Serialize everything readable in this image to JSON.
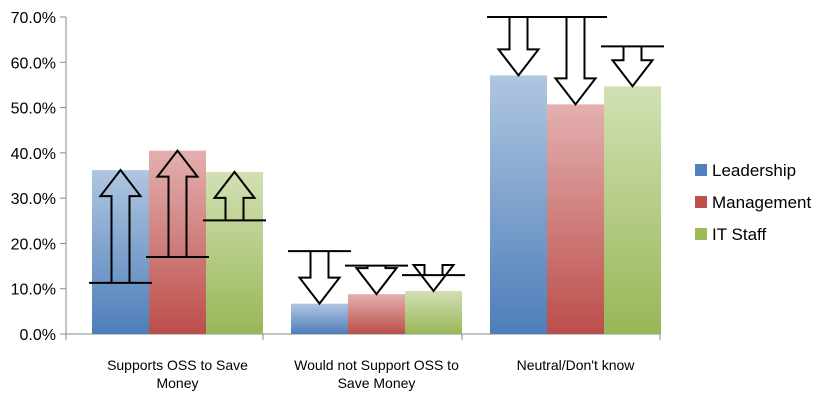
{
  "chart_data": {
    "type": "bar",
    "categories": [
      [
        "Supports OSS to Save",
        "Money"
      ],
      [
        "Would not Support OSS to",
        "Save Money"
      ],
      [
        "Neutral/Don't know"
      ]
    ],
    "series": [
      {
        "name": "Leadership",
        "values": [
          36.2,
          6.7,
          57.1
        ],
        "color": "#4f81bd"
      },
      {
        "name": "Management",
        "values": [
          40.5,
          8.8,
          50.7
        ],
        "color": "#c0504d"
      },
      {
        "name": "IT Staff",
        "values": [
          35.8,
          9.5,
          54.7
        ],
        "color": "#9bbb59"
      }
    ],
    "yticks": [
      "0.0%",
      "10.0%",
      "20.0%",
      "30.0%",
      "40.0%",
      "50.0%",
      "60.0%",
      "70.0%"
    ],
    "ylim": [
      0,
      70
    ],
    "legend_position": "right",
    "annotations": {
      "type": "arrows",
      "description_values": [
        {
          "category": 0,
          "series": 0,
          "from": 11.3,
          "to": 36.2
        },
        {
          "category": 0,
          "series": 1,
          "from": 17.0,
          "to": 40.5
        },
        {
          "category": 0,
          "series": 2,
          "from": 25.1,
          "to": 35.8
        },
        {
          "category": 1,
          "series": 0,
          "from": 18.3,
          "to": 6.7
        },
        {
          "category": 1,
          "series": 1,
          "from": 15.1,
          "to": 8.8
        },
        {
          "category": 1,
          "series": 2,
          "from": 13.0,
          "to": 9.5
        },
        {
          "category": 2,
          "series": 0,
          "from": 70.0,
          "to": 57.1
        },
        {
          "category": 2,
          "series": 1,
          "from": 70.0,
          "to": 50.7
        },
        {
          "category": 2,
          "series": 2,
          "from": 63.5,
          "to": 54.7
        }
      ]
    }
  }
}
